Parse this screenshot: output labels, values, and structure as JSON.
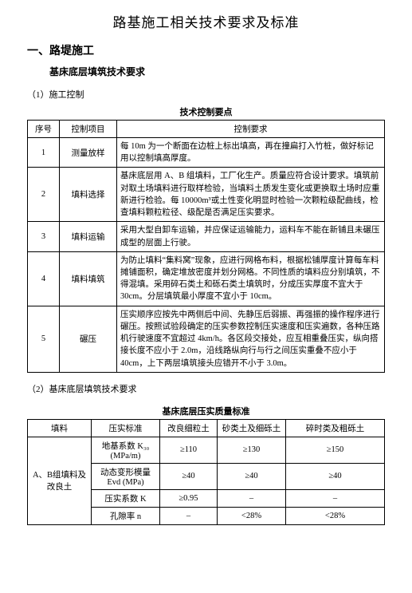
{
  "title": "路基施工相关技术要求及标准",
  "section1": {
    "heading": "一、路堤施工",
    "subheading": "基床底层填筑技术要求",
    "part1_label": "（1）施工控制",
    "part1_caption": "技术控制要点",
    "t1": {
      "headers": {
        "num": "序号",
        "item": "控制项目",
        "req": "控制要求"
      },
      "rows": [
        {
          "num": "1",
          "item": "测量放样",
          "req": "每 10m 为一个断面在边桩上标出填高，再在撞扁打入竹桩，做好标记用以控制填高厚度。"
        },
        {
          "num": "2",
          "item": "填料选择",
          "req": "基床底层用 A、B 组填料，工厂化生产。质量应符合设计要求。填筑前对取土场填料进行取样检验，当填料土质发生变化或更换取土场时应重新进行检验。每 10000m³或土性变化明显时检验一次颗粒级配曲线，检查填料颗粒粒径、级配是否满足压实要求。"
        },
        {
          "num": "3",
          "item": "填料运输",
          "req": "采用大型自卸车运输，并应保证运输能力，运料车不能在新铺且未碾压成型的层面上行驶。"
        },
        {
          "num": "4",
          "item": "填料填筑",
          "req": "为防止填料“集料窝”现象，应进行网格布料，根据松铺厚度计算每车料摊铺面积，确定堆放密度并划分网格。不同性质的填料应分别填筑，不得混填。采用碎石类土和砾石类土填筑时，分成压实厚度不宜大于 30cm。分层填筑最小厚度不宜小于 10cm。"
        },
        {
          "num": "5",
          "item": "碾压",
          "req": "压实顺序应按先中两侧后中间、先静压后弱振、再强振的操作程序进行碾压。按照试验段确定的压实参数控制压实速度和压实遍数，各种压路机行驶速度不宜超过 4km/h。各区段交接处，应互相重叠压实，纵向搭接长度不应小于 2.0m，沿线路纵向行与行之间压实重叠不应小于 40cm，上下两层填筑接头应错开不小于 3.0m。"
        }
      ]
    },
    "part2_label": "（2）基床底层填筑技术要求",
    "part2_caption": "基床底层压实质量标准",
    "t2": {
      "headers": {
        "a": "填料",
        "b": "压实标准",
        "c": "改良细粒土",
        "d": "砂类土及细砾土",
        "e": "碎时类及粗砾土"
      },
      "rowspan_label": "A、B组填料及改良土",
      "rows": [
        {
          "b": "地基系数 K₃₀ (MPa/m)",
          "c": "≥110",
          "d": "≥130",
          "e": "≥150"
        },
        {
          "b": "动态变形模量 Evd (MPa)",
          "c": "≥40",
          "d": "≥40",
          "e": "≥40"
        },
        {
          "b": "压实系数 K",
          "c": "≥0.95",
          "d": "–",
          "e": "–"
        },
        {
          "b": "孔隙率 n",
          "c": "–",
          "d": "<28%",
          "e": "<28%"
        }
      ]
    }
  }
}
